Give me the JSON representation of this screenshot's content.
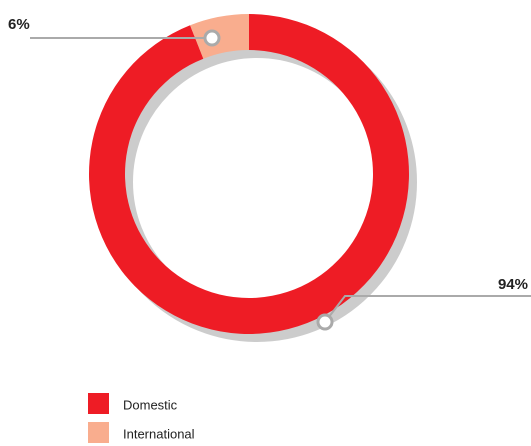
{
  "chart_data": {
    "type": "donut",
    "series": [
      {
        "name": "Domestic",
        "color": "#ee1c25",
        "values": [
          94
        ],
        "value_labels": [
          "94%"
        ]
      },
      {
        "name": "International",
        "color": "#f9ad8e",
        "values": [
          6
        ],
        "value_labels": [
          "6%"
        ]
      }
    ]
  }
}
